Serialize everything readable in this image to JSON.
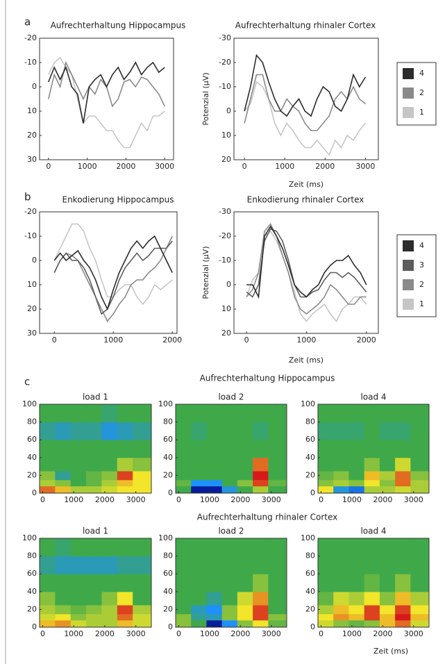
{
  "chart_data": [
    {
      "type": "line",
      "panel_label": "a",
      "title": "Aufrechterhaltung Hippocampus",
      "y_inverted": true,
      "x": [
        0,
        150,
        300,
        450,
        600,
        750,
        900,
        1050,
        1200,
        1350,
        1500,
        1650,
        1800,
        1950,
        2100,
        2250,
        2400,
        2550,
        2700,
        2850,
        3000
      ],
      "xlim": [
        -230,
        3230
      ],
      "xticks": [
        0,
        1000,
        2000,
        3000
      ],
      "ylim": [
        -20,
        30
      ],
      "yticks": [
        -20,
        -10,
        0,
        10,
        20,
        30
      ],
      "series": [
        {
          "color": "#2b2b2b",
          "values": [
            -2,
            -8,
            -3,
            -8,
            0,
            3,
            15,
            0,
            -3,
            -5,
            0,
            -5,
            -8,
            -3,
            -6,
            -10,
            -5,
            -8,
            -10,
            -6,
            -8
          ]
        },
        {
          "color": "#8a8a8a",
          "values": [
            5,
            -5,
            0,
            -10,
            -5,
            0,
            5,
            0,
            3,
            -3,
            0,
            8,
            5,
            -2,
            -3,
            0,
            -4,
            -3,
            0,
            3,
            8
          ]
        },
        {
          "color": "#c6c6c6",
          "values": [
            -5,
            -10,
            -12,
            -8,
            -5,
            5,
            15,
            12,
            12,
            15,
            18,
            18,
            22,
            25,
            25,
            20,
            15,
            18,
            12,
            12,
            10
          ]
        }
      ]
    },
    {
      "type": "line",
      "title": "Aufrechterhaltung rhinaler Cortex",
      "y_inverted": true,
      "y_label": "Potenzial (µV)",
      "x_label": "Zeit (ms)",
      "x": [
        0,
        150,
        300,
        450,
        600,
        750,
        900,
        1050,
        1200,
        1350,
        1500,
        1650,
        1800,
        1950,
        2100,
        2250,
        2400,
        2550,
        2700,
        2850,
        3000
      ],
      "xlim": [
        -260,
        3320
      ],
      "xticks": [
        0,
        1000,
        2000,
        3000
      ],
      "ylim": [
        -30,
        20
      ],
      "yticks": [
        -30,
        -20,
        -10,
        0,
        10,
        20
      ],
      "series": [
        {
          "name": "4",
          "color": "#2b2b2b",
          "values": [
            0,
            -10,
            -23,
            -20,
            -12,
            -5,
            0,
            2,
            -2,
            -5,
            0,
            2,
            -5,
            -10,
            -8,
            -2,
            0,
            -5,
            -15,
            -10,
            -14
          ]
        },
        {
          "name": "2",
          "color": "#8a8a8a",
          "values": [
            5,
            -5,
            -15,
            -15,
            -5,
            0,
            0,
            -5,
            -2,
            0,
            5,
            8,
            8,
            5,
            2,
            -5,
            -8,
            -5,
            -10,
            -5,
            -3
          ]
        },
        {
          "name": "1",
          "color": "#c6c6c6",
          "values": [
            0,
            -3,
            -12,
            -10,
            -5,
            5,
            10,
            5,
            8,
            12,
            15,
            15,
            12,
            15,
            18,
            12,
            15,
            10,
            12,
            8,
            5
          ]
        }
      ]
    },
    {
      "type": "line",
      "panel_label": "b",
      "title": "Enkodierung Hippocampus",
      "y_inverted": true,
      "x": [
        0,
        100,
        200,
        300,
        400,
        500,
        600,
        700,
        800,
        900,
        1000,
        1100,
        1200,
        1300,
        1400,
        1500,
        1600,
        1700,
        1800,
        1900,
        2000
      ],
      "xlim": [
        -250,
        2080
      ],
      "xticks": [
        0,
        1000,
        2000
      ],
      "ylim": [
        -20,
        30
      ],
      "yticks": [
        -20,
        -10,
        0,
        10,
        20,
        30
      ],
      "series": [
        {
          "color": "#2b2b2b",
          "values": [
            0,
            -3,
            0,
            -2,
            -4,
            0,
            3,
            8,
            15,
            20,
            12,
            5,
            0,
            -5,
            -8,
            -5,
            -8,
            -10,
            -5,
            0,
            5
          ]
        },
        {
          "color": "#5c5c5c",
          "values": [
            5,
            0,
            -3,
            0,
            0,
            3,
            8,
            15,
            22,
            20,
            15,
            8,
            3,
            0,
            -3,
            0,
            -2,
            -5,
            -5,
            -5,
            -8
          ]
        },
        {
          "color": "#8a8a8a",
          "values": [
            5,
            0,
            -3,
            -2,
            0,
            5,
            10,
            15,
            20,
            25,
            22,
            18,
            15,
            10,
            8,
            8,
            5,
            3,
            0,
            -5,
            -10
          ]
        },
        {
          "color": "#c6c6c6",
          "values": [
            0,
            -5,
            -10,
            -15,
            -15,
            -12,
            -5,
            0,
            8,
            15,
            15,
            12,
            10,
            10,
            15,
            18,
            15,
            10,
            12,
            10,
            8
          ]
        }
      ]
    },
    {
      "type": "line",
      "title": "Enkodierung rhinaler Cortex",
      "y_inverted": true,
      "y_label": "Potenzial (µV)",
      "x_label": "Zeit (ms)",
      "x": [
        0,
        100,
        200,
        300,
        400,
        500,
        600,
        700,
        800,
        900,
        1000,
        1100,
        1200,
        1300,
        1400,
        1500,
        1600,
        1700,
        1800,
        1900,
        2000
      ],
      "xlim": [
        -210,
        2200
      ],
      "xticks": [
        0,
        1000,
        2000
      ],
      "ylim": [
        -30,
        20
      ],
      "yticks": [
        -30,
        -20,
        -10,
        0,
        10,
        20
      ],
      "series": [
        {
          "name": "4",
          "color": "#2b2b2b",
          "values": [
            0,
            0,
            5,
            -20,
            -24,
            -20,
            -15,
            -8,
            0,
            3,
            5,
            2,
            0,
            -5,
            -8,
            -10,
            -10,
            -12,
            -8,
            -5,
            0
          ]
        },
        {
          "name": "3",
          "color": "#5c5c5c",
          "values": [
            3,
            5,
            0,
            -18,
            -23,
            -22,
            -18,
            -10,
            0,
            5,
            5,
            3,
            2,
            -2,
            -5,
            -5,
            -3,
            -5,
            -3,
            0,
            3
          ]
        },
        {
          "name": "2",
          "color": "#8a8a8a",
          "values": [
            5,
            2,
            -5,
            -22,
            -25,
            -20,
            -12,
            -5,
            5,
            10,
            12,
            10,
            8,
            5,
            0,
            2,
            5,
            8,
            8,
            5,
            5
          ]
        },
        {
          "name": "1",
          "color": "#c6c6c6",
          "values": [
            5,
            -2,
            -5,
            -20,
            -22,
            -18,
            -12,
            -5,
            3,
            12,
            15,
            12,
            10,
            8,
            12,
            15,
            10,
            8,
            5,
            5,
            8
          ]
        }
      ]
    },
    {
      "type": "heatmap",
      "panel_label": "c",
      "group_title": "Aufrechterhaltung Hippocampus",
      "title": "load 1",
      "x_edges": [
        -100,
        400,
        900,
        1400,
        1900,
        2400,
        2900,
        3500
      ],
      "y_edges": [
        0,
        8,
        15,
        25,
        40,
        60,
        80,
        100
      ],
      "xlim": [
        -100,
        3500
      ],
      "xticks": [
        0,
        1000,
        2000,
        3000
      ],
      "ylim": [
        0,
        100
      ],
      "yticks": [
        0,
        20,
        40,
        60,
        80,
        100
      ],
      "zlim": [
        -1,
        1
      ],
      "colormap": [
        "#00007f",
        "#1e90ff",
        "#3fa94a",
        "#f2e52a",
        "#d7191c"
      ],
      "z": [
        [
          0.8,
          0.6,
          0.3,
          0.3,
          0.4,
          0.5,
          0.5
        ],
        [
          0.3,
          0.2,
          0,
          0.1,
          0.3,
          0.6,
          0.5
        ],
        [
          0.2,
          -0.2,
          0,
          0.1,
          0.2,
          0.9,
          0.5
        ],
        [
          0,
          0,
          0,
          0,
          0,
          0.3,
          0.2
        ],
        [
          0,
          0,
          0,
          0,
          0,
          0,
          0
        ],
        [
          -0.2,
          -0.3,
          -0.2,
          -0.2,
          -0.4,
          -0.3,
          -0.2
        ],
        [
          0,
          0,
          0,
          0,
          -0.1,
          0,
          0
        ]
      ]
    },
    {
      "type": "heatmap",
      "title": "load 2",
      "x_edges": [
        -100,
        400,
        900,
        1400,
        1900,
        2400,
        2900,
        3500
      ],
      "y_edges": [
        0,
        8,
        15,
        25,
        40,
        60,
        80,
        100
      ],
      "xlim": [
        -100,
        3500
      ],
      "xticks": [
        0,
        1000,
        2000,
        3000
      ],
      "ylim": [
        0,
        100
      ],
      "yticks": [
        0,
        20,
        40,
        60,
        80,
        100
      ],
      "zlim": [
        -1,
        1
      ],
      "colormap": [
        "#00007f",
        "#1e90ff",
        "#3fa94a",
        "#f2e52a",
        "#d7191c"
      ],
      "z": [
        [
          0,
          -0.9,
          -0.9,
          -0.4,
          0,
          0.3,
          0
        ],
        [
          0.1,
          -0.5,
          -0.5,
          0,
          0.2,
          0.9,
          0.1
        ],
        [
          0,
          0,
          0,
          0,
          0,
          1,
          0
        ],
        [
          0,
          0,
          0,
          0,
          0,
          0.8,
          0
        ],
        [
          0,
          0,
          0,
          0,
          0,
          0,
          0
        ],
        [
          0,
          -0.1,
          0,
          0,
          0,
          -0.1,
          0
        ],
        [
          0,
          0,
          0,
          0,
          0,
          0,
          0
        ]
      ]
    },
    {
      "type": "heatmap",
      "title": "load 4",
      "x_edges": [
        -100,
        400,
        900,
        1400,
        1900,
        2400,
        2900,
        3500
      ],
      "y_edges": [
        0,
        8,
        15,
        25,
        40,
        60,
        80,
        100
      ],
      "xlim": [
        -100,
        3500
      ],
      "xticks": [
        0,
        1000,
        2000,
        3000
      ],
      "ylim": [
        0,
        100
      ],
      "yticks": [
        0,
        20,
        40,
        60,
        80,
        100
      ],
      "zlim": [
        -1,
        1
      ],
      "colormap": [
        "#00007f",
        "#1e90ff",
        "#3fa94a",
        "#f2e52a",
        "#d7191c"
      ],
      "z": [
        [
          0.5,
          -0.4,
          -0.6,
          0.3,
          0.3,
          0.4,
          0.3
        ],
        [
          0.2,
          0.3,
          0.2,
          0.5,
          0.2,
          0.8,
          0.3
        ],
        [
          0.1,
          0.2,
          0,
          0.6,
          0.3,
          0.8,
          0.2
        ],
        [
          0,
          0,
          0,
          0.2,
          0,
          0.4,
          0
        ],
        [
          0,
          0,
          0,
          0,
          0,
          0,
          0
        ],
        [
          -0.1,
          -0.1,
          -0.1,
          0,
          -0.1,
          -0.1,
          0
        ],
        [
          0,
          0,
          0,
          0,
          0,
          0,
          0
        ]
      ]
    },
    {
      "type": "heatmap",
      "group_title": "Aufrechterhaltung rhinaler Cortex",
      "title": "load 1",
      "x_edges": [
        -100,
        400,
        900,
        1400,
        1900,
        2400,
        2900,
        3500
      ],
      "y_edges": [
        0,
        8,
        15,
        25,
        40,
        60,
        80,
        100
      ],
      "xlim": [
        -100,
        3500
      ],
      "xticks": [
        0,
        1000,
        2000,
        3000
      ],
      "ylim": [
        0,
        100
      ],
      "yticks": [
        0,
        20,
        40,
        60,
        80,
        100
      ],
      "zlim": [
        -1,
        1
      ],
      "colormap": [
        "#00007f",
        "#1e90ff",
        "#3fa94a",
        "#f2e52a",
        "#d7191c"
      ],
      "z": [
        [
          0.6,
          0.7,
          0.4,
          0.3,
          0.3,
          0.6,
          0.4
        ],
        [
          0.4,
          0.5,
          0.2,
          0.3,
          0.3,
          0.8,
          0.4
        ],
        [
          0.3,
          0.2,
          0.1,
          0.2,
          0.3,
          0.9,
          0.3
        ],
        [
          0.2,
          0,
          0,
          0,
          0.2,
          0.5,
          0
        ],
        [
          0,
          0,
          0,
          0,
          0,
          0,
          0
        ],
        [
          -0.2,
          -0.3,
          -0.3,
          -0.3,
          -0.3,
          -0.2,
          -0.2
        ],
        [
          0,
          -0.1,
          0,
          0,
          0,
          0,
          0
        ]
      ]
    },
    {
      "type": "heatmap",
      "title": "load 2",
      "x_edges": [
        -100,
        400,
        900,
        1400,
        1900,
        2400,
        2900,
        3500
      ],
      "y_edges": [
        0,
        8,
        15,
        25,
        40,
        60,
        80,
        100
      ],
      "xlim": [
        -100,
        3500
      ],
      "xticks": [
        0,
        1000,
        2000,
        3000
      ],
      "ylim": [
        0,
        100
      ],
      "yticks": [
        0,
        20,
        40,
        60,
        80,
        100
      ],
      "zlim": [
        -1,
        1
      ],
      "colormap": [
        "#00007f",
        "#1e90ff",
        "#3fa94a",
        "#f2e52a",
        "#d7191c"
      ],
      "z": [
        [
          0.2,
          0,
          -0.9,
          -0.5,
          0.2,
          0.5,
          0.1
        ],
        [
          0.2,
          -0.2,
          -0.3,
          0.2,
          0.5,
          0.9,
          0.2
        ],
        [
          0,
          -0.3,
          -0.5,
          0.2,
          0.5,
          0.9,
          0
        ],
        [
          0,
          0,
          -0.2,
          0,
          0.4,
          0.7,
          0
        ],
        [
          0,
          0,
          0,
          0,
          0,
          0.2,
          0
        ],
        [
          0,
          0,
          0,
          0,
          0,
          0,
          0
        ],
        [
          0,
          0,
          0,
          0,
          0,
          0,
          0
        ]
      ]
    },
    {
      "type": "heatmap",
      "title": "load 4",
      "x_label": "Zeit (ms)",
      "x_edges": [
        -100,
        400,
        900,
        1400,
        1900,
        2400,
        2900,
        3500
      ],
      "y_edges": [
        0,
        8,
        15,
        25,
        40,
        60,
        80,
        100
      ],
      "xlim": [
        -100,
        3500
      ],
      "xticks": [
        0,
        1000,
        2000,
        3000
      ],
      "ylim": [
        0,
        100
      ],
      "yticks": [
        0,
        20,
        40,
        60,
        80,
        100
      ],
      "zlim": [
        -1,
        1
      ],
      "colormap": [
        "#00007f",
        "#1e90ff",
        "#3fa94a",
        "#f2e52a",
        "#d7191c"
      ],
      "z": [
        [
          0.4,
          0.2,
          0.1,
          0.2,
          0.6,
          0.8,
          0.4
        ],
        [
          0.5,
          0.7,
          0.6,
          0.9,
          0.6,
          1,
          0.6
        ],
        [
          0.3,
          0.6,
          0.5,
          0.9,
          0.5,
          0.9,
          0.5
        ],
        [
          0.1,
          0.4,
          0.3,
          0.5,
          0.2,
          0.6,
          0.3
        ],
        [
          0,
          0,
          0,
          0.1,
          0,
          0.2,
          0
        ],
        [
          0,
          0,
          0,
          0,
          0,
          0,
          0
        ],
        [
          0,
          0,
          0,
          0,
          0,
          0,
          0
        ]
      ]
    }
  ]
}
